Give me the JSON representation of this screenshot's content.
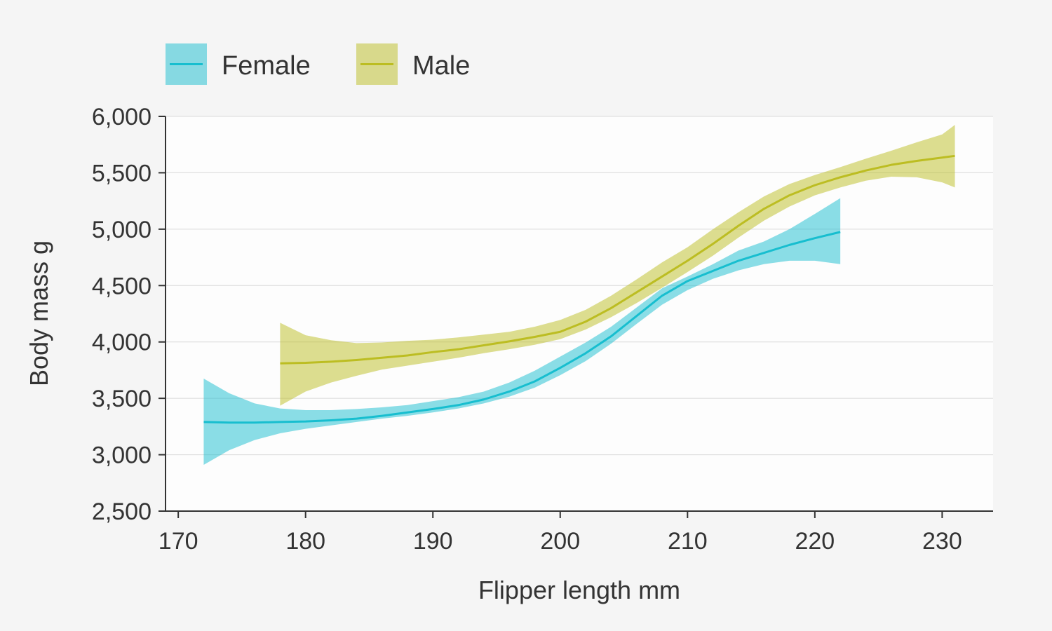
{
  "chart_data": {
    "type": "line",
    "title": "",
    "xlabel": "Flipper length mm",
    "ylabel": "Body mass g",
    "xlim": [
      169,
      234
    ],
    "ylim": [
      2500,
      6000
    ],
    "x_ticks": [
      170,
      180,
      190,
      200,
      210,
      220,
      230
    ],
    "x_tick_labels": [
      "170",
      "180",
      "190",
      "200",
      "210",
      "220",
      "230"
    ],
    "y_ticks": [
      2500,
      3000,
      3500,
      4000,
      4500,
      5000,
      5500,
      6000
    ],
    "y_tick_labels": [
      "2,500",
      "3,000",
      "3,500",
      "4,000",
      "4,500",
      "5,000",
      "5,500",
      "6,000"
    ],
    "grid": "horizontal",
    "legend_position": "top-left",
    "series": [
      {
        "name": "Female",
        "color": "#17becf",
        "x": [
          172,
          174,
          176,
          178,
          180,
          182,
          184,
          186,
          188,
          190,
          192,
          194,
          196,
          198,
          200,
          202,
          204,
          206,
          208,
          210,
          212,
          214,
          216,
          218,
          220,
          222
        ],
        "y": [
          3290,
          3285,
          3285,
          3290,
          3295,
          3305,
          3320,
          3345,
          3375,
          3405,
          3440,
          3490,
          3560,
          3650,
          3770,
          3900,
          4050,
          4230,
          4410,
          4540,
          4630,
          4720,
          4790,
          4860,
          4920,
          4975
        ],
        "ci_lower": [
          2910,
          3040,
          3130,
          3190,
          3230,
          3260,
          3290,
          3320,
          3345,
          3375,
          3410,
          3455,
          3515,
          3595,
          3705,
          3830,
          3985,
          4160,
          4330,
          4460,
          4560,
          4635,
          4690,
          4720,
          4720,
          4690
        ],
        "ci_upper": [
          3675,
          3545,
          3455,
          3410,
          3395,
          3395,
          3405,
          3420,
          3440,
          3475,
          3510,
          3560,
          3640,
          3745,
          3870,
          3995,
          4135,
          4305,
          4475,
          4580,
          4690,
          4810,
          4890,
          5000,
          5135,
          5275
        ]
      },
      {
        "name": "Male",
        "color": "#bcbd22",
        "x": [
          178,
          180,
          182,
          184,
          186,
          188,
          190,
          192,
          194,
          196,
          198,
          200,
          202,
          204,
          206,
          208,
          210,
          212,
          214,
          216,
          218,
          220,
          222,
          224,
          226,
          228,
          230,
          231
        ],
        "y": [
          3810,
          3815,
          3825,
          3840,
          3860,
          3880,
          3910,
          3935,
          3970,
          4005,
          4045,
          4090,
          4180,
          4300,
          4440,
          4580,
          4720,
          4870,
          5030,
          5180,
          5300,
          5390,
          5460,
          5520,
          5570,
          5605,
          5635,
          5650
        ],
        "ci_lower": [
          3435,
          3560,
          3640,
          3700,
          3755,
          3790,
          3825,
          3860,
          3900,
          3935,
          3975,
          4025,
          4110,
          4220,
          4345,
          4480,
          4620,
          4765,
          4925,
          5075,
          5200,
          5300,
          5370,
          5430,
          5465,
          5460,
          5415,
          5370
        ],
        "ci_upper": [
          4170,
          4060,
          4015,
          3990,
          3995,
          4010,
          4020,
          4040,
          4065,
          4090,
          4135,
          4195,
          4285,
          4410,
          4555,
          4705,
          4840,
          5000,
          5150,
          5290,
          5400,
          5480,
          5550,
          5625,
          5695,
          5770,
          5840,
          5925
        ]
      }
    ]
  }
}
